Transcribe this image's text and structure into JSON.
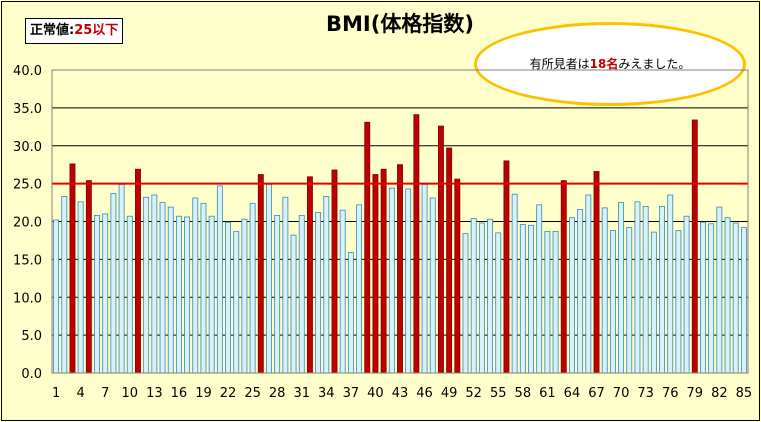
{
  "normal_range": {
    "label": "正常値:",
    "value": "25以下"
  },
  "callout": {
    "text_before": "有所見者は",
    "count": "18名",
    "text_after": "みえました。"
  },
  "colors": {
    "normal_bar": "#d6f2fb",
    "normal_bar_border": "#3a86b4",
    "high_bar": "#c00000",
    "threshold_line": "#e00000",
    "background": "#ffffcc"
  },
  "chart_data": {
    "type": "bar",
    "title": "BMI(体格指数)",
    "threshold": 25,
    "ylim": [
      0,
      40
    ],
    "y_ticks": [
      "0.0",
      "5.0",
      "10.0",
      "15.0",
      "20.0",
      "25.0",
      "30.0",
      "35.0",
      "40.0"
    ],
    "x_tick_labels": [
      "1",
      "4",
      "7",
      "10",
      "13",
      "16",
      "19",
      "22",
      "25",
      "28",
      "31",
      "34",
      "37",
      "40",
      "43",
      "46",
      "49",
      "52",
      "55",
      "58",
      "61",
      "64",
      "67",
      "70",
      "73",
      "76",
      "79",
      "82",
      "85"
    ],
    "x_tick_every": 3,
    "categories": [
      1,
      2,
      3,
      4,
      5,
      6,
      7,
      8,
      9,
      10,
      11,
      12,
      13,
      14,
      15,
      16,
      17,
      18,
      19,
      20,
      21,
      22,
      23,
      24,
      25,
      26,
      27,
      28,
      29,
      30,
      31,
      32,
      33,
      34,
      35,
      36,
      37,
      38,
      39,
      40,
      41,
      42,
      43,
      44,
      45,
      46,
      47,
      48,
      49,
      50,
      51,
      52,
      53,
      54,
      55,
      56,
      57,
      58,
      59,
      60,
      61,
      62,
      63,
      64,
      65,
      66,
      67,
      68,
      69,
      70,
      71,
      72,
      73,
      74,
      75,
      76,
      77,
      78,
      79,
      80,
      81,
      82,
      83,
      84,
      85
    ],
    "values": [
      20.2,
      23.3,
      27.6,
      22.6,
      25.4,
      20.8,
      21.0,
      23.7,
      24.9,
      20.7,
      26.9,
      23.2,
      23.5,
      22.5,
      21.9,
      20.7,
      20.6,
      23.1,
      22.4,
      20.7,
      24.7,
      19.9,
      18.7,
      20.3,
      22.4,
      26.2,
      24.9,
      20.8,
      23.2,
      18.2,
      20.8,
      25.9,
      21.2,
      23.3,
      26.8,
      21.5,
      15.9,
      22.2,
      33.1,
      26.2,
      26.9,
      24.4,
      27.5,
      24.3,
      34.1,
      24.9,
      23.1,
      32.6,
      29.7,
      25.6,
      18.4,
      20.4,
      19.8,
      20.3,
      18.5,
      28.0,
      23.6,
      19.6,
      19.5,
      22.2,
      18.7,
      18.7,
      25.4,
      20.5,
      21.6,
      23.5,
      26.6,
      21.8,
      18.8,
      22.5,
      19.2,
      22.6,
      22.0,
      18.6,
      22.0,
      23.5,
      18.8,
      20.7,
      33.4,
      19.9,
      19.7,
      21.9,
      20.5,
      19.8,
      19.2
    ]
  }
}
